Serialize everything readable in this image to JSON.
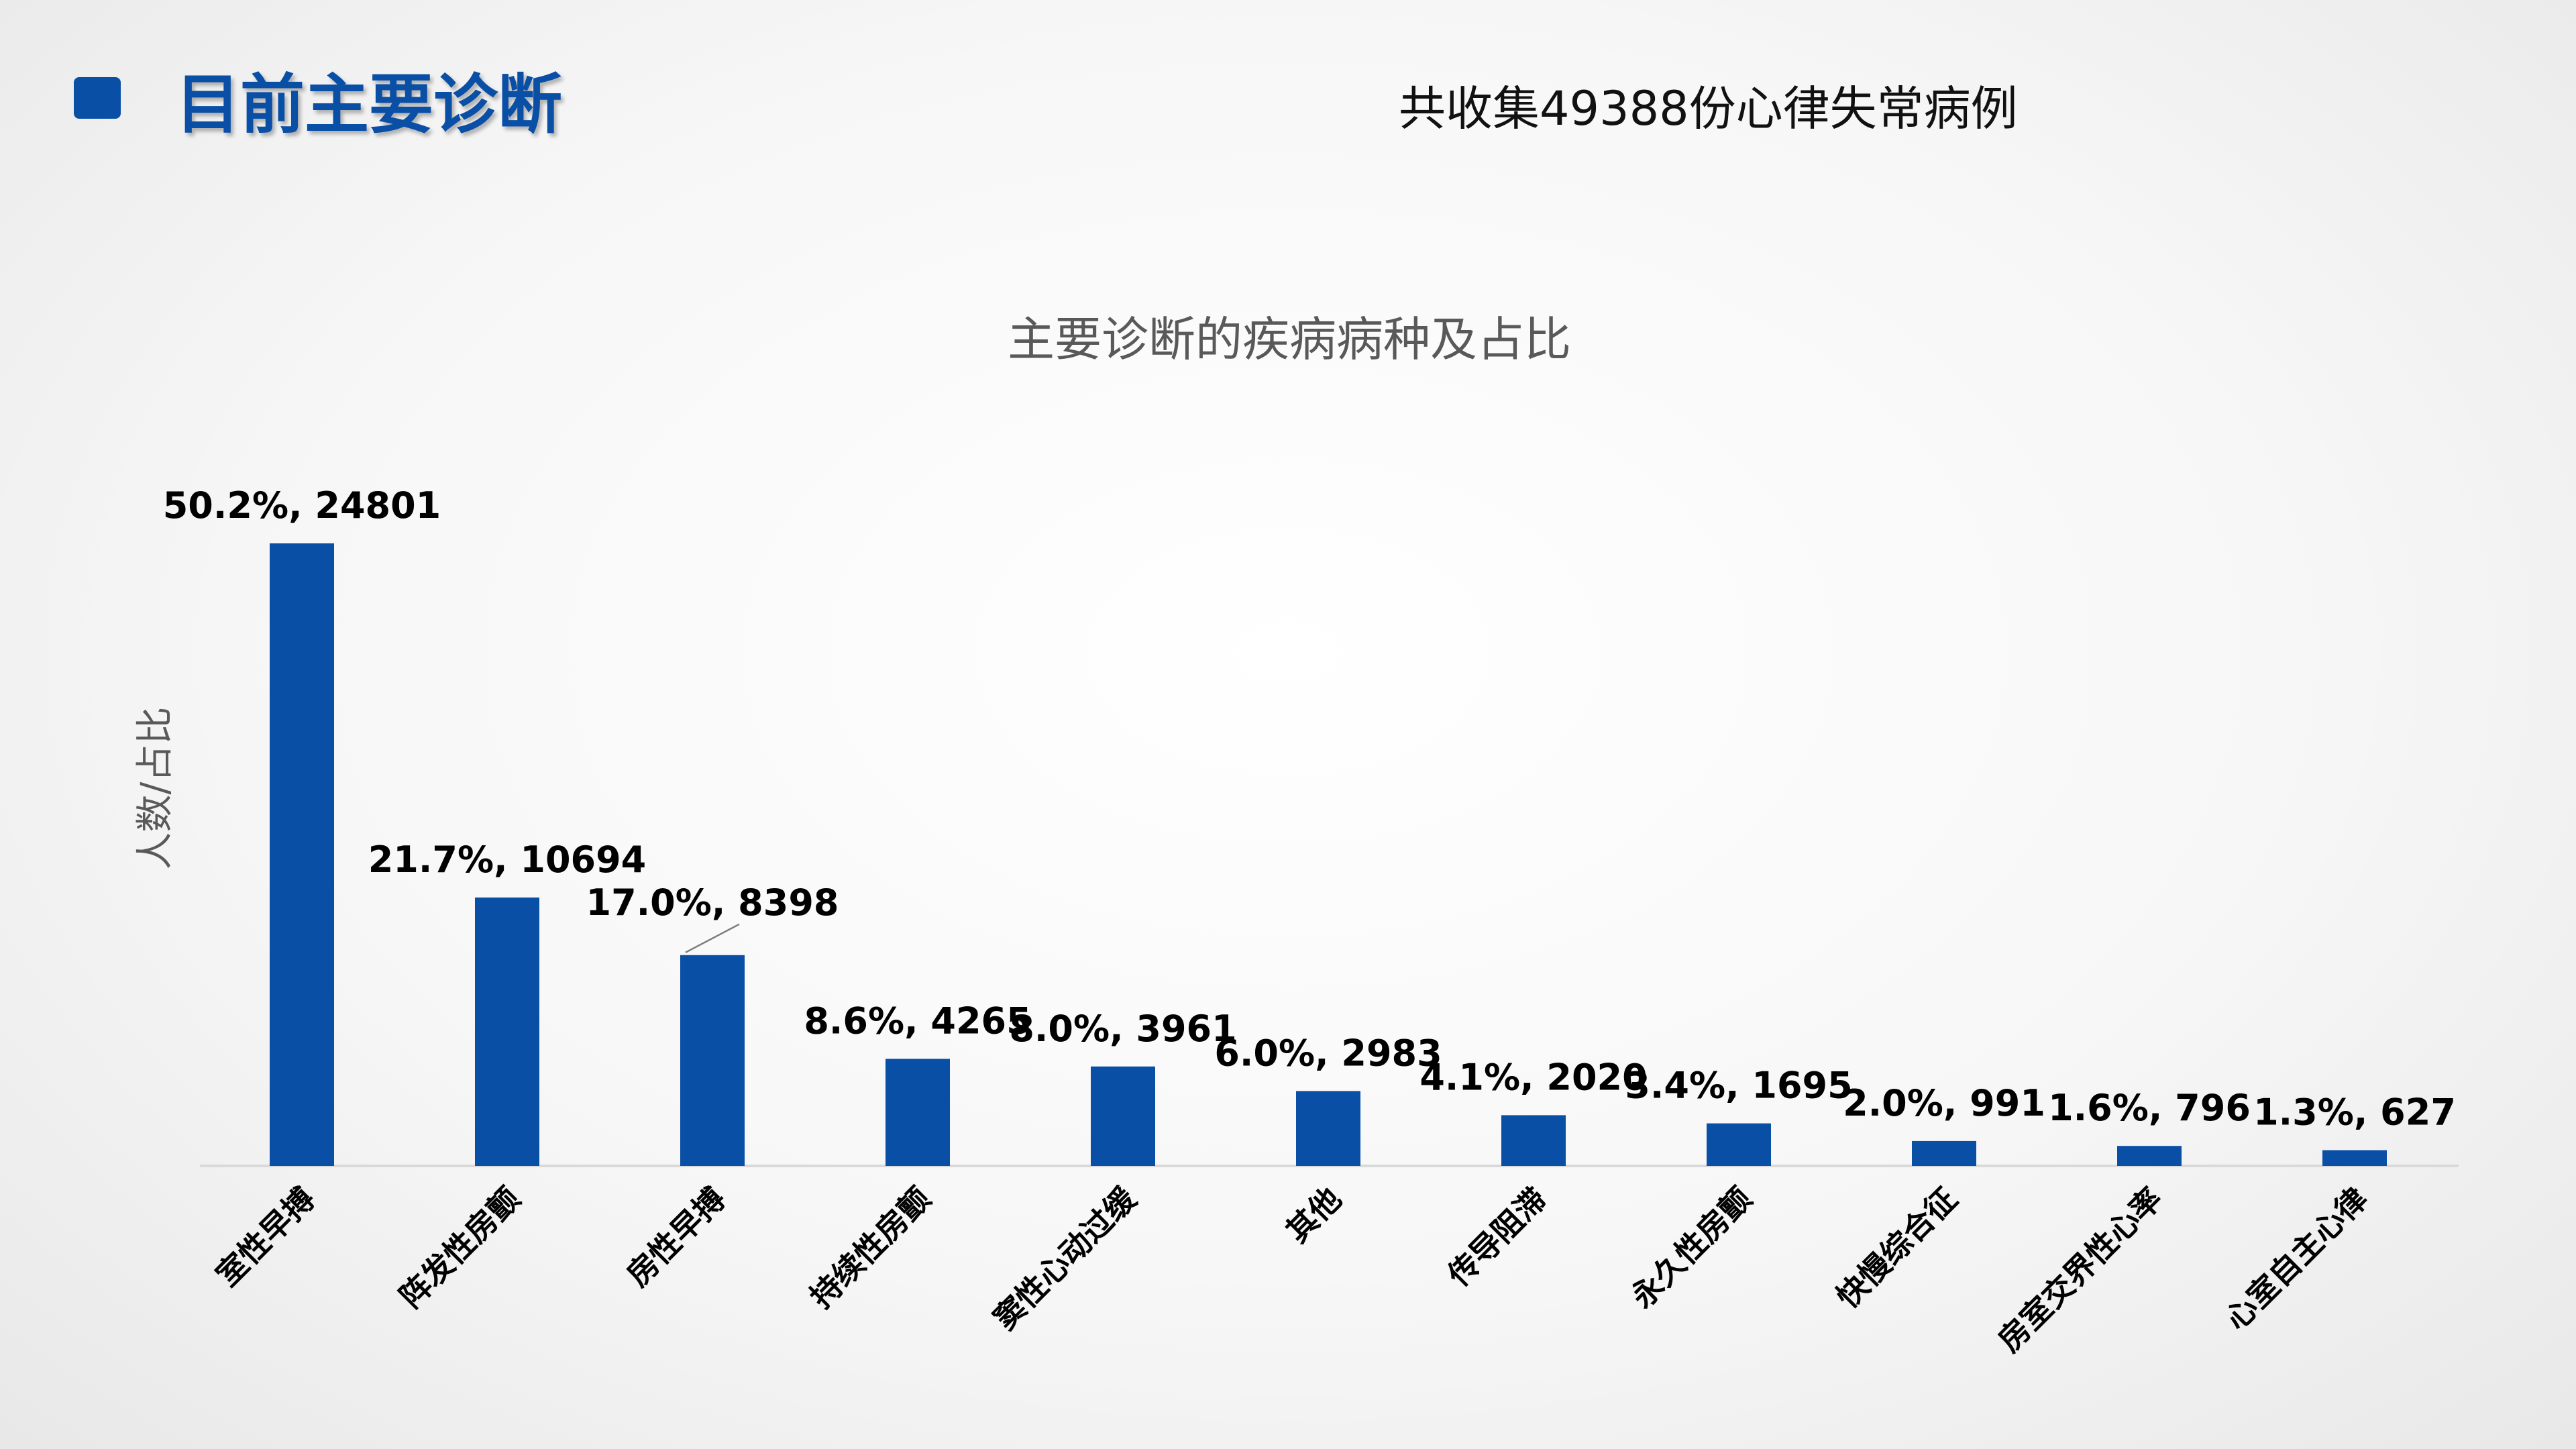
{
  "header": {
    "title": "目前主要诊断",
    "note": "共收集49388份心律失常病例",
    "accent_color": "#0a4fa6"
  },
  "chart_data": {
    "type": "bar",
    "title": "主要诊断的疾病病种及占比",
    "ylabel": "人数/占比",
    "xlabel": "",
    "ylim": [
      0,
      26000
    ],
    "grid": false,
    "bar_color": "#0a4fa6",
    "categories": [
      "室性早搏",
      "阵发性房颤",
      "房性早搏",
      "持续性房颤",
      "窦性心动过缓",
      "其他",
      "传导阻滞",
      "永久性房颤",
      "快慢综合征",
      "房室交界性心率",
      "心室自主心律"
    ],
    "values": [
      24801,
      10694,
      8398,
      4265,
      3961,
      2983,
      2020,
      1695,
      991,
      796,
      627
    ],
    "labels": [
      "50.2%, 24801",
      "21.7%, 10694",
      "17.0%, 8398",
      "8.6%, 4265",
      "8.0%, 3961",
      "6.0%, 2983",
      "4.1%, 2020",
      "3.4%, 1695",
      "2.0%, 991",
      "1.6%, 796",
      "1.3%, 627"
    ]
  }
}
